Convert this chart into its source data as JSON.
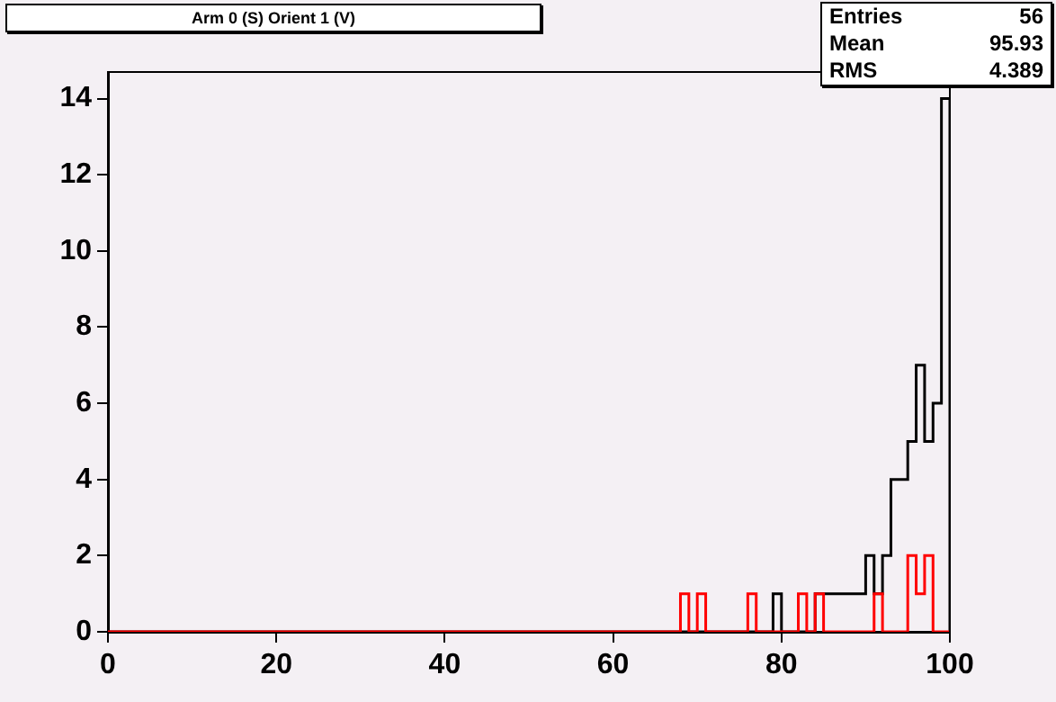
{
  "chart_data": {
    "type": "histogram",
    "title": "Arm 0 (S) Orient 1 (V)",
    "bins": [
      0,
      1,
      2,
      3,
      4,
      5,
      6,
      7,
      8,
      9,
      10,
      11,
      12,
      13,
      14,
      15,
      16,
      17,
      18,
      19,
      20,
      21,
      22,
      23,
      24,
      25,
      26,
      27,
      28,
      29,
      30,
      31,
      32,
      33,
      34,
      35,
      36,
      37,
      38,
      39,
      40,
      41,
      42,
      43,
      44,
      45,
      46,
      47,
      48,
      49,
      50,
      51,
      52,
      53,
      54,
      55,
      56,
      57,
      58,
      59,
      60,
      61,
      62,
      63,
      64,
      65,
      66,
      67,
      68,
      69,
      70,
      71,
      72,
      73,
      74,
      75,
      76,
      77,
      78,
      79,
      80,
      81,
      82,
      83,
      84,
      85,
      86,
      87,
      88,
      89,
      90,
      91,
      92,
      93,
      94,
      95,
      96,
      97,
      98,
      99,
      100
    ],
    "series": [
      {
        "color": "#000000",
        "values": [
          0,
          0,
          0,
          0,
          0,
          0,
          0,
          0,
          0,
          0,
          0,
          0,
          0,
          0,
          0,
          0,
          0,
          0,
          0,
          0,
          0,
          0,
          0,
          0,
          0,
          0,
          0,
          0,
          0,
          0,
          0,
          0,
          0,
          0,
          0,
          0,
          0,
          0,
          0,
          0,
          0,
          0,
          0,
          0,
          0,
          0,
          0,
          0,
          0,
          0,
          0,
          0,
          0,
          0,
          0,
          0,
          0,
          0,
          0,
          0,
          0,
          0,
          0,
          0,
          0,
          0,
          0,
          0,
          0,
          0,
          0,
          0,
          0,
          0,
          0,
          0,
          0,
          0,
          0,
          1,
          0,
          0,
          0,
          0,
          1,
          1,
          1,
          1,
          1,
          1,
          2,
          1,
          2,
          4,
          4,
          5,
          7,
          5,
          6,
          14
        ]
      },
      {
        "color": "#ff0000",
        "values": [
          0,
          0,
          0,
          0,
          0,
          0,
          0,
          0,
          0,
          0,
          0,
          0,
          0,
          0,
          0,
          0,
          0,
          0,
          0,
          0,
          0,
          0,
          0,
          0,
          0,
          0,
          0,
          0,
          0,
          0,
          0,
          0,
          0,
          0,
          0,
          0,
          0,
          0,
          0,
          0,
          0,
          0,
          0,
          0,
          0,
          0,
          0,
          0,
          0,
          0,
          0,
          0,
          0,
          0,
          0,
          0,
          0,
          0,
          0,
          0,
          0,
          0,
          0,
          0,
          0,
          0,
          0,
          0,
          1,
          0,
          1,
          0,
          0,
          0,
          0,
          0,
          1,
          0,
          0,
          0,
          0,
          0,
          1,
          0,
          1,
          0,
          0,
          0,
          0,
          0,
          0,
          1,
          0,
          0,
          0,
          2,
          1,
          2,
          0,
          0
        ]
      }
    ],
    "xlim": [
      0,
      100
    ],
    "xticks": [
      0,
      20,
      40,
      60,
      80,
      100
    ],
    "ylim": [
      0,
      14.7
    ],
    "yticks": [
      0,
      2,
      4,
      6,
      8,
      10,
      12,
      14
    ],
    "grid": false,
    "legend": false,
    "annotations": [
      "Entries 56",
      "Mean 95.93",
      "RMS 4.389"
    ]
  }
}
